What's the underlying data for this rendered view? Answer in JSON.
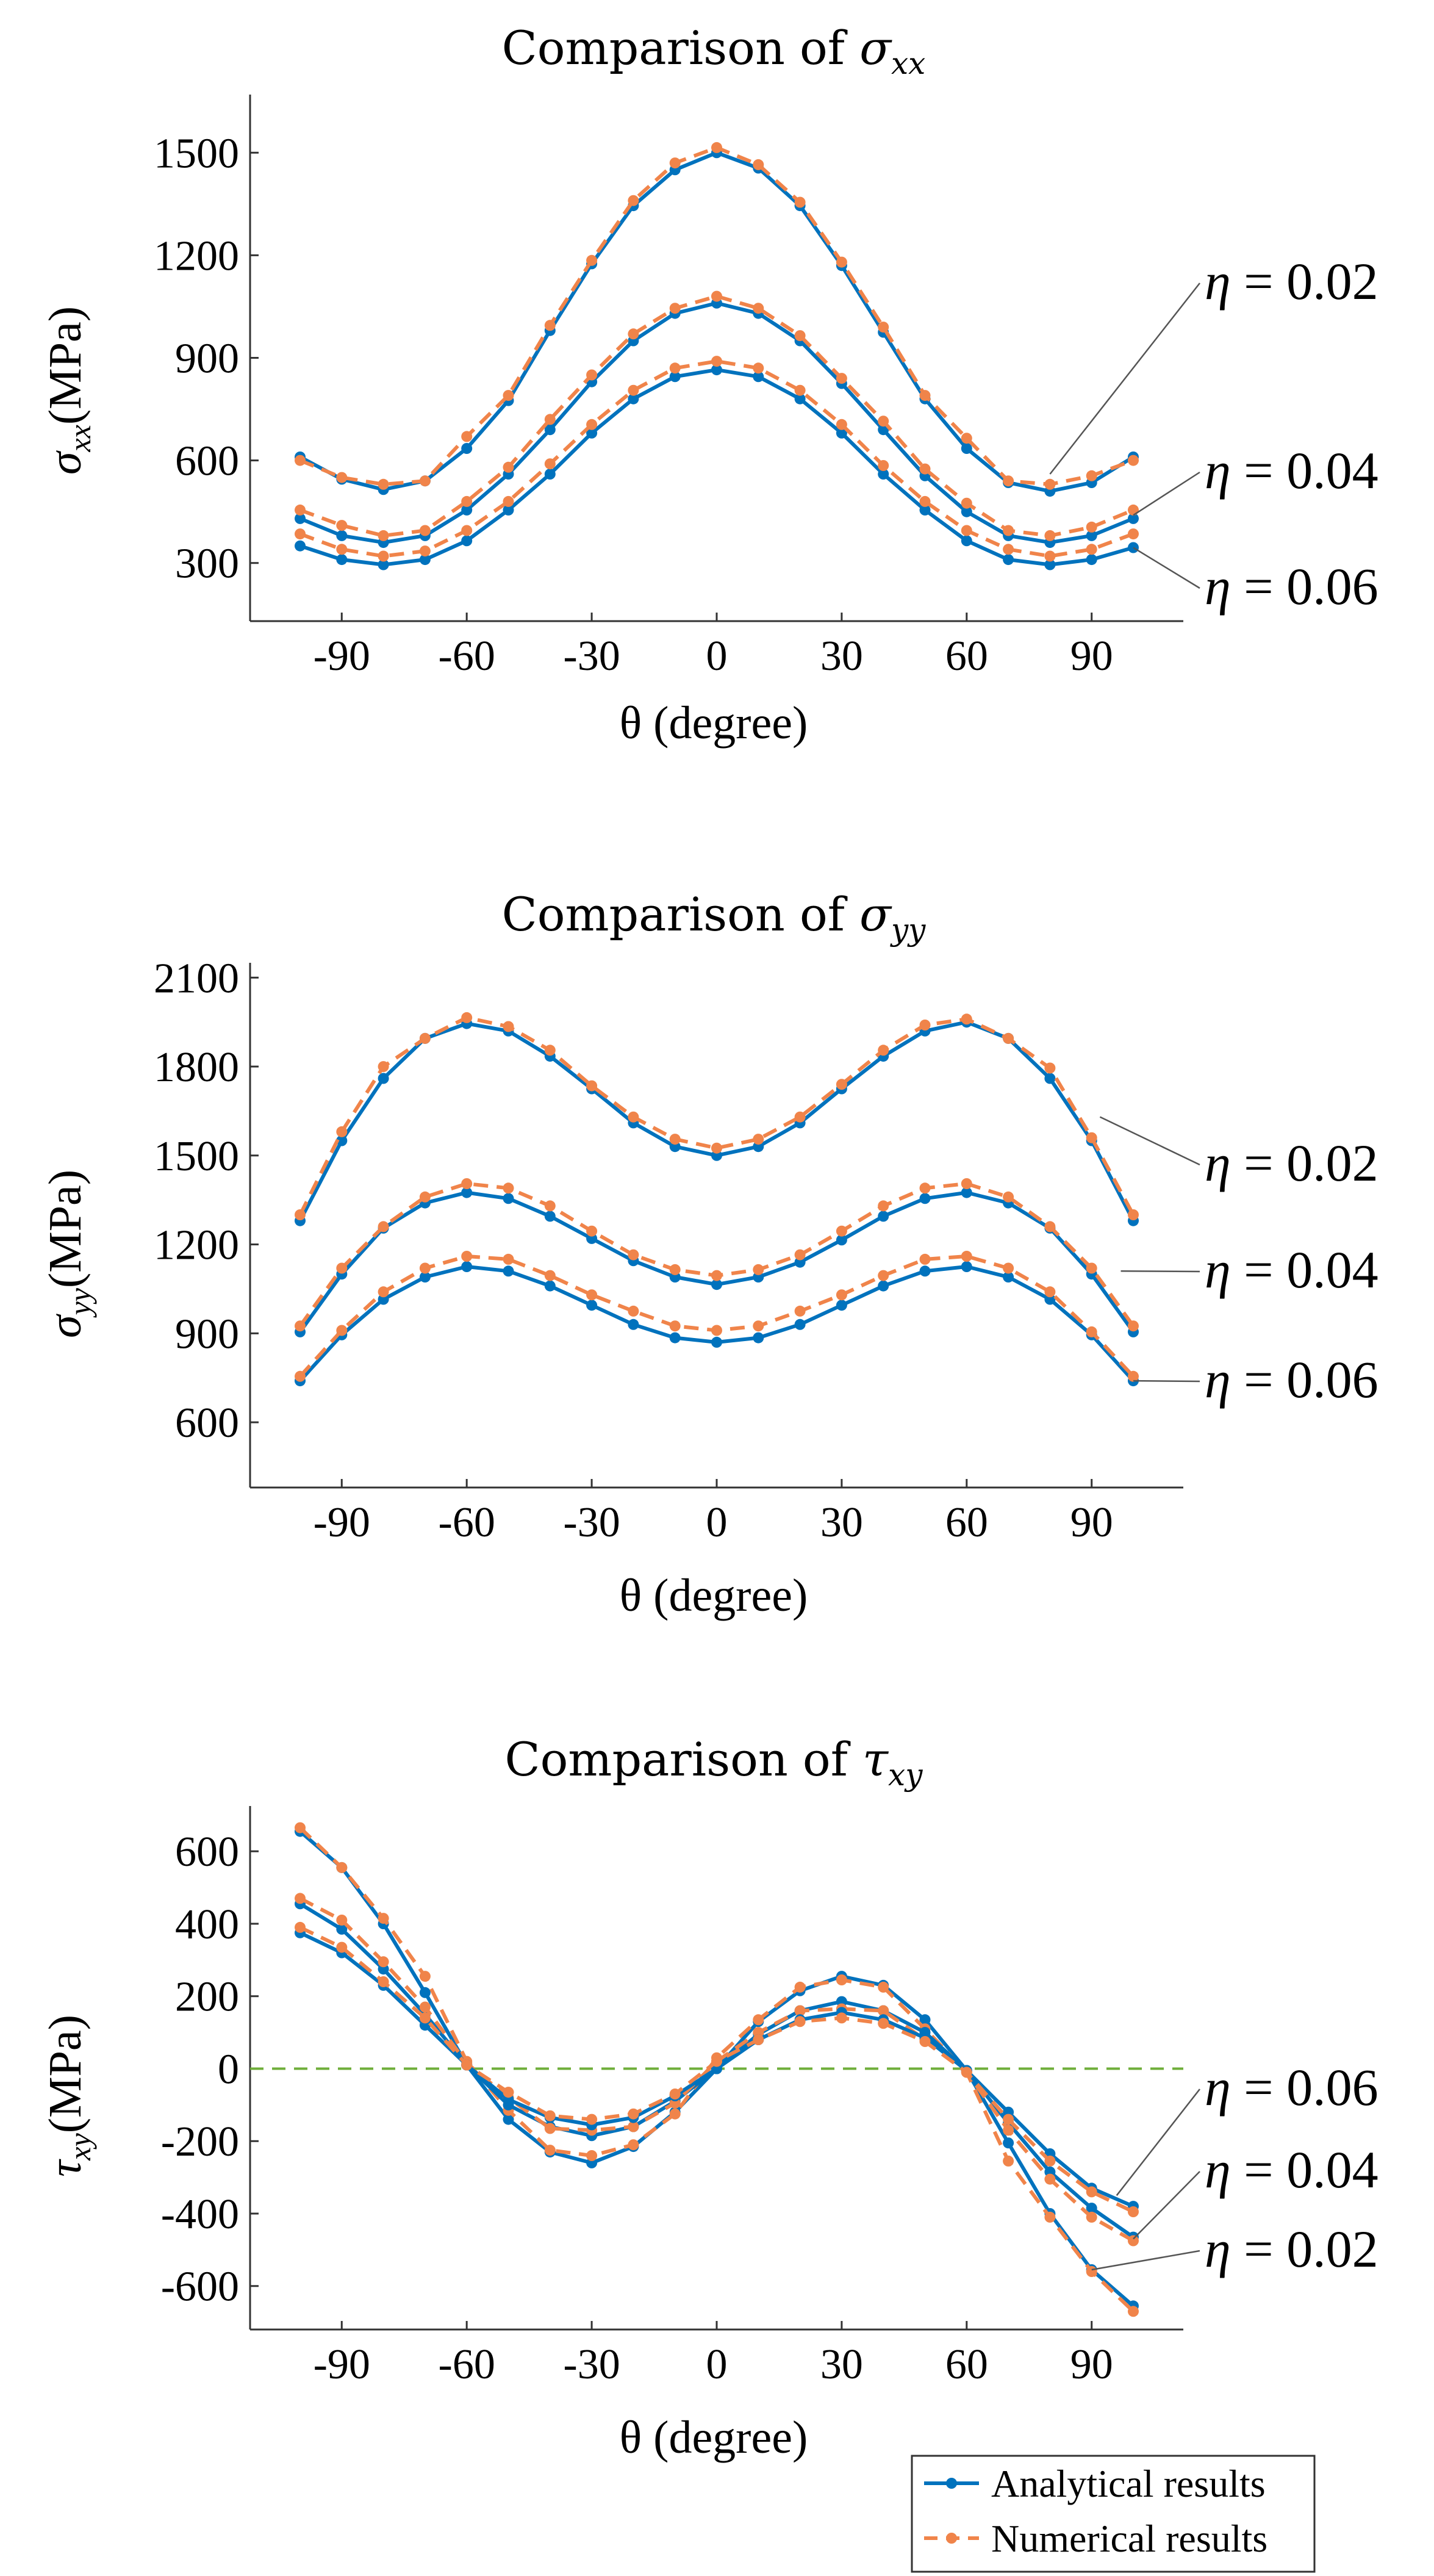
{
  "chart_data": [
    {
      "type": "line",
      "title": "Comparison of σxx",
      "title_main": "Comparison of ",
      "title_symbol": "σ",
      "title_sub": "xx",
      "ylabel": "σxx(MPa)",
      "ylabel_symbol": "σ",
      "ylabel_sub": "xx",
      "ylabel_unit": "(MPa)",
      "xlabel": "θ (degree)",
      "xlim": [
        -112,
        112
      ],
      "ylim": [
        130,
        1670
      ],
      "xticks": [
        -90,
        -60,
        -30,
        0,
        30,
        60,
        90
      ],
      "xtick_labels": [
        "-90",
        "-60",
        "-30",
        "0",
        "30",
        "60",
        "90"
      ],
      "yticks": [
        300,
        600,
        900,
        1200,
        1500
      ],
      "ytick_labels": [
        "300",
        "600",
        "900",
        "1200",
        "1500"
      ],
      "x": [
        -100,
        -90,
        -80,
        -70,
        -60,
        -50,
        -40,
        -30,
        -20,
        -10,
        0,
        10,
        20,
        30,
        40,
        50,
        60,
        70,
        80,
        90,
        100
      ],
      "series": [
        {
          "name": "Analytical η = 0.02",
          "kind": "analytical",
          "values": [
            610,
            545,
            515,
            540,
            635,
            775,
            980,
            1175,
            1345,
            1450,
            1500,
            1455,
            1345,
            1170,
            975,
            780,
            635,
            535,
            510,
            535,
            610
          ]
        },
        {
          "name": "Numerical η = 0.02",
          "kind": "numerical",
          "values": [
            600,
            550,
            530,
            540,
            670,
            790,
            995,
            1185,
            1360,
            1470,
            1515,
            1465,
            1355,
            1180,
            990,
            790,
            665,
            540,
            530,
            555,
            600
          ]
        },
        {
          "name": "Analytical η = 0.04",
          "kind": "analytical",
          "values": [
            430,
            380,
            360,
            380,
            455,
            560,
            690,
            830,
            950,
            1030,
            1060,
            1030,
            950,
            825,
            690,
            555,
            450,
            380,
            360,
            380,
            430
          ]
        },
        {
          "name": "Numerical η = 0.04",
          "kind": "numerical",
          "values": [
            455,
            410,
            380,
            395,
            480,
            580,
            720,
            850,
            970,
            1045,
            1080,
            1045,
            965,
            840,
            715,
            575,
            475,
            395,
            380,
            405,
            455
          ]
        },
        {
          "name": "Analytical η = 0.06",
          "kind": "analytical",
          "values": [
            350,
            310,
            295,
            310,
            365,
            455,
            560,
            680,
            780,
            845,
            865,
            845,
            780,
            680,
            560,
            455,
            365,
            310,
            295,
            310,
            345
          ]
        },
        {
          "name": "Numerical η = 0.06",
          "kind": "numerical",
          "values": [
            385,
            340,
            320,
            335,
            395,
            480,
            590,
            705,
            805,
            870,
            890,
            870,
            805,
            705,
            585,
            480,
            395,
            340,
            320,
            340,
            385
          ]
        }
      ],
      "annotations": [
        {
          "text": "η = 0.02",
          "point_x": 80,
          "point_y": 560
        },
        {
          "text": "η = 0.04",
          "point_x": 100,
          "point_y": 440
        },
        {
          "text": "η = 0.06",
          "point_x": 100,
          "point_y": 345
        }
      ]
    },
    {
      "type": "line",
      "title": "Comparison of σyy",
      "title_main": "Comparison of ",
      "title_symbol": "σ",
      "title_sub": "yy",
      "ylabel": "σyy(MPa)",
      "ylabel_symbol": "σ",
      "ylabel_sub": "yy",
      "ylabel_unit": "(MPa)",
      "xlabel": "θ (degree)",
      "xlim": [
        -112,
        112
      ],
      "ylim": [
        380,
        2150
      ],
      "xticks": [
        -90,
        -60,
        -30,
        0,
        30,
        60,
        90
      ],
      "xtick_labels": [
        "-90",
        "-60",
        "-30",
        "0",
        "30",
        "60",
        "90"
      ],
      "yticks": [
        600,
        900,
        1200,
        1500,
        1800,
        2100
      ],
      "ytick_labels": [
        "600",
        "900",
        "1200",
        "1500",
        "1800",
        "2100"
      ],
      "x": [
        -100,
        -90,
        -80,
        -70,
        -60,
        -50,
        -40,
        -30,
        -20,
        -10,
        0,
        10,
        20,
        30,
        40,
        50,
        60,
        70,
        80,
        90,
        100
      ],
      "series": [
        {
          "name": "Analytical η = 0.02",
          "kind": "analytical",
          "values": [
            1280,
            1550,
            1760,
            1895,
            1945,
            1920,
            1835,
            1725,
            1610,
            1530,
            1500,
            1530,
            1610,
            1725,
            1835,
            1920,
            1950,
            1895,
            1760,
            1550,
            1280
          ]
        },
        {
          "name": "Numerical η = 0.02",
          "kind": "numerical",
          "values": [
            1300,
            1580,
            1800,
            1895,
            1965,
            1935,
            1855,
            1735,
            1630,
            1555,
            1525,
            1555,
            1630,
            1740,
            1855,
            1940,
            1960,
            1895,
            1795,
            1560,
            1300
          ]
        },
        {
          "name": "Analytical η = 0.04",
          "kind": "analytical",
          "values": [
            905,
            1100,
            1255,
            1340,
            1375,
            1355,
            1295,
            1220,
            1145,
            1090,
            1065,
            1090,
            1140,
            1215,
            1295,
            1355,
            1375,
            1340,
            1255,
            1100,
            905
          ]
        },
        {
          "name": "Numerical η = 0.04",
          "kind": "numerical",
          "values": [
            925,
            1120,
            1260,
            1360,
            1405,
            1390,
            1330,
            1245,
            1165,
            1115,
            1095,
            1115,
            1165,
            1245,
            1330,
            1390,
            1405,
            1360,
            1260,
            1120,
            925
          ]
        },
        {
          "name": "Analytical η = 0.06",
          "kind": "analytical",
          "values": [
            740,
            895,
            1015,
            1090,
            1125,
            1110,
            1060,
            995,
            930,
            885,
            870,
            885,
            930,
            995,
            1060,
            1110,
            1125,
            1090,
            1015,
            895,
            740
          ]
        },
        {
          "name": "Numerical η = 0.06",
          "kind": "numerical",
          "values": [
            755,
            910,
            1040,
            1120,
            1160,
            1150,
            1095,
            1030,
            975,
            925,
            910,
            925,
            975,
            1030,
            1095,
            1150,
            1160,
            1120,
            1040,
            905,
            755
          ]
        }
      ],
      "annotations": [
        {
          "text": "η = 0.02",
          "point_x": 92,
          "point_y": 1630
        },
        {
          "text": "η = 0.04",
          "point_x": 97,
          "point_y": 1110
        },
        {
          "text": "η = 0.06",
          "point_x": 100,
          "point_y": 740
        }
      ]
    },
    {
      "type": "line",
      "title": "Comparison of τxy",
      "title_main": "Comparison of ",
      "title_symbol": "τ",
      "title_sub": "xy",
      "ylabel": "τxy(MPa)",
      "ylabel_symbol": "τ",
      "ylabel_sub": "xy",
      "ylabel_unit": "(MPa)",
      "xlabel": "θ (degree)",
      "xlim": [
        -112,
        112
      ],
      "ylim": [
        -720,
        725
      ],
      "xticks": [
        -90,
        -60,
        -30,
        0,
        30,
        60,
        90
      ],
      "xtick_labels": [
        "-90",
        "-60",
        "-30",
        "0",
        "30",
        "60",
        "90"
      ],
      "yticks": [
        -600,
        -400,
        -200,
        0,
        200,
        400,
        600
      ],
      "ytick_labels": [
        "-600",
        "-400",
        "-200",
        "0",
        "200",
        "400",
        "600"
      ],
      "zero_line": {
        "y": 0,
        "color": "#6fae3a"
      },
      "x": [
        -100,
        -90,
        -80,
        -70,
        -60,
        -50,
        -40,
        -30,
        -20,
        -10,
        0,
        10,
        20,
        30,
        40,
        50,
        60,
        70,
        80,
        90,
        100
      ],
      "series": [
        {
          "name": "Analytical η = 0.02",
          "kind": "analytical",
          "values": [
            655,
            555,
            400,
            210,
            10,
            -140,
            -230,
            -260,
            -215,
            -120,
            0,
            130,
            215,
            255,
            230,
            135,
            -5,
            -205,
            -400,
            -555,
            -655
          ]
        },
        {
          "name": "Numerical η = 0.02",
          "kind": "numerical",
          "values": [
            665,
            555,
            415,
            255,
            20,
            -115,
            -225,
            -240,
            -210,
            -125,
            30,
            135,
            225,
            245,
            225,
            110,
            -10,
            -255,
            -410,
            -560,
            -670
          ]
        },
        {
          "name": "Analytical η = 0.04",
          "kind": "analytical",
          "values": [
            455,
            385,
            275,
            150,
            10,
            -100,
            -160,
            -185,
            -160,
            -90,
            0,
            95,
            160,
            185,
            160,
            100,
            -5,
            -150,
            -285,
            -385,
            -465
          ]
        },
        {
          "name": "Numerical η = 0.04",
          "kind": "numerical",
          "values": [
            470,
            410,
            295,
            170,
            15,
            -80,
            -165,
            -170,
            -160,
            -95,
            20,
            100,
            160,
            165,
            160,
            80,
            -10,
            -170,
            -305,
            -410,
            -475
          ]
        },
        {
          "name": "Analytical η = 0.06",
          "kind": "analytical",
          "values": [
            375,
            320,
            230,
            120,
            10,
            -85,
            -135,
            -155,
            -135,
            -75,
            0,
            80,
            135,
            155,
            135,
            85,
            -5,
            -120,
            -235,
            -330,
            -380
          ]
        },
        {
          "name": "Numerical η = 0.06",
          "kind": "numerical",
          "values": [
            390,
            335,
            240,
            140,
            10,
            -65,
            -130,
            -140,
            -125,
            -70,
            20,
            80,
            130,
            140,
            125,
            75,
            -10,
            -140,
            -255,
            -340,
            -395
          ]
        }
      ],
      "annotations": [
        {
          "text": "η = 0.06",
          "point_x": 96,
          "point_y": -350
        },
        {
          "text": "η = 0.04",
          "point_x": 100,
          "point_y": -470
        },
        {
          "text": "η = 0.02",
          "point_x": 90,
          "point_y": -555
        }
      ]
    }
  ],
  "legend": {
    "placement": "bottom-right",
    "entries": [
      {
        "label": "Analytical results",
        "kind": "analytical"
      },
      {
        "label": "Numerical results",
        "kind": "numerical"
      }
    ]
  },
  "colors": {
    "analytical": "#0072bd",
    "numerical": "#f0844a",
    "zero_line": "#6fae3a",
    "axis": "#333333",
    "leader": "#555555"
  }
}
